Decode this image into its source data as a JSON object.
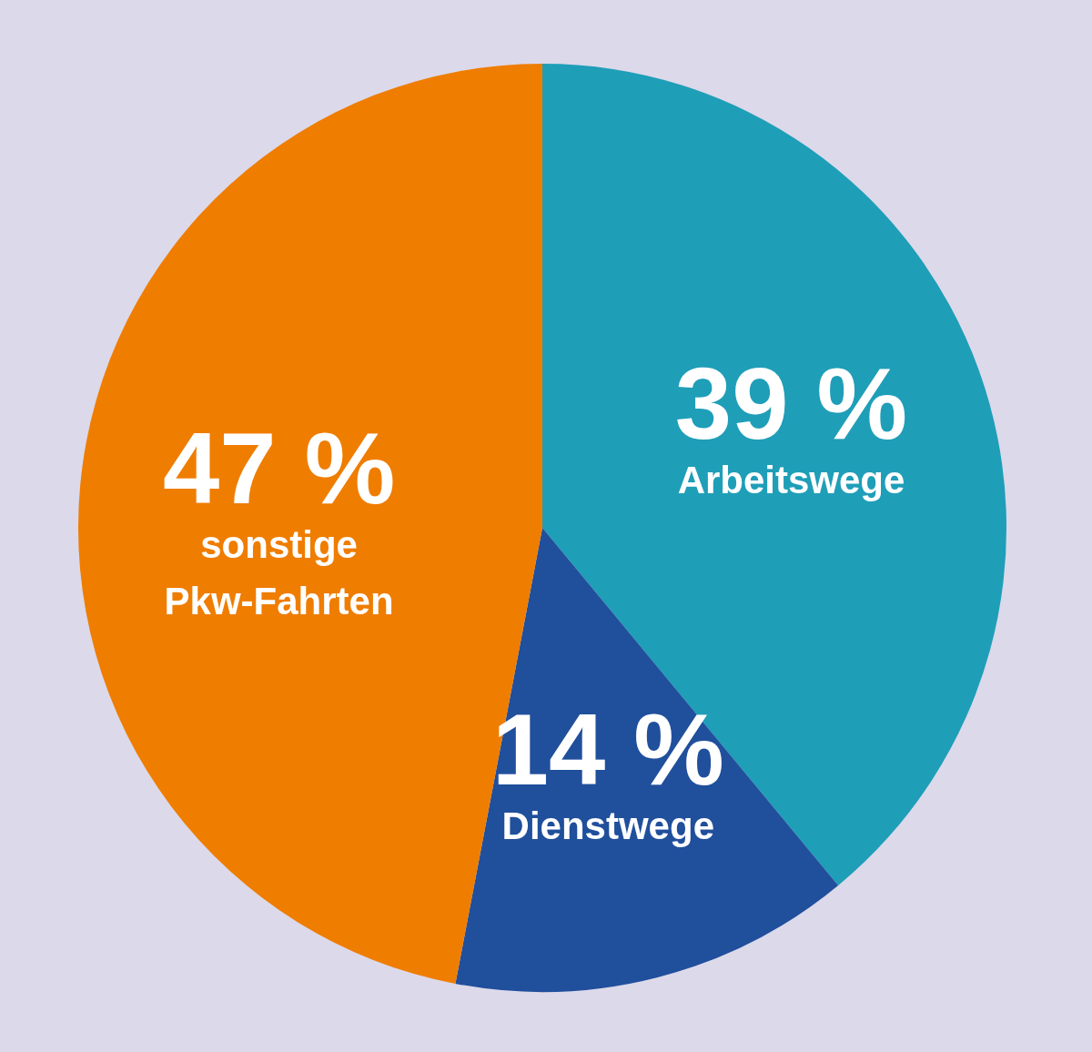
{
  "chart_data": {
    "type": "pie",
    "categories": [
      "Arbeitswege",
      "Dienstwege",
      "sonstige Pkw-Fahrten"
    ],
    "values": [
      39,
      14,
      47
    ],
    "colors": [
      "#1f9eb8",
      "#204f9c",
      "#ef7d00"
    ],
    "value_labels": [
      "39 %",
      "14 %",
      "47 %"
    ],
    "legend": false
  }
}
